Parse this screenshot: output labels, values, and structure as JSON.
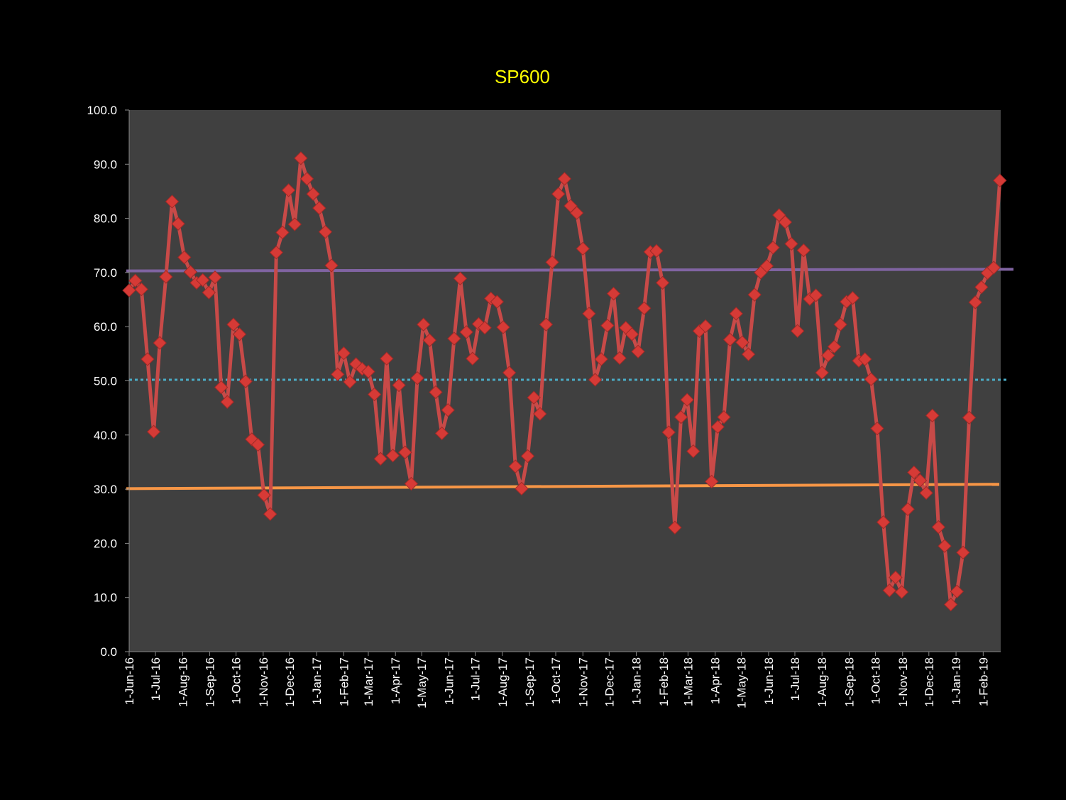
{
  "chart_data": {
    "type": "line",
    "title": "SP600",
    "xlabel": "",
    "ylabel": "",
    "ylim": [
      0,
      100
    ],
    "y_ticks": [
      "0.0",
      "10.0",
      "20.0",
      "30.0",
      "40.0",
      "50.0",
      "60.0",
      "70.0",
      "80.0",
      "90.0",
      "100.0"
    ],
    "x_tick_labels": [
      "1-Jun-16",
      "1-Jul-16",
      "1-Aug-16",
      "1-Sep-16",
      "1-Oct-16",
      "1-Nov-16",
      "1-Dec-16",
      "1-Jan-17",
      "1-Feb-17",
      "1-Mar-17",
      "1-Apr-17",
      "1-May-17",
      "1-Jun-17",
      "1-Jul-17",
      "1-Aug-17",
      "1-Sep-17",
      "1-Oct-17",
      "1-Nov-17",
      "1-Dec-17",
      "1-Jan-18",
      "1-Feb-18",
      "1-Mar-18",
      "1-Apr-18",
      "1-May-18",
      "1-Jun-18",
      "1-Jul-18",
      "1-Aug-18",
      "1-Sep-18",
      "1-Oct-18",
      "1-Nov-18",
      "1-Dec-18",
      "1-Jan-19",
      "1-Feb-19"
    ],
    "x_tick_dates": [
      "2016-06-01",
      "2016-07-01",
      "2016-08-01",
      "2016-09-01",
      "2016-10-01",
      "2016-11-01",
      "2016-12-01",
      "2017-01-01",
      "2017-02-01",
      "2017-03-01",
      "2017-04-01",
      "2017-05-01",
      "2017-06-01",
      "2017-07-01",
      "2017-08-01",
      "2017-09-01",
      "2017-10-01",
      "2017-11-01",
      "2017-12-01",
      "2018-01-01",
      "2018-02-01",
      "2018-03-01",
      "2018-04-01",
      "2018-05-01",
      "2018-06-01",
      "2018-07-01",
      "2018-08-01",
      "2018-09-01",
      "2018-10-01",
      "2018-11-01",
      "2018-12-01",
      "2019-01-01",
      "2019-02-01"
    ],
    "xlim": [
      "2016-06-01",
      "2019-02-21"
    ],
    "grid": false,
    "legend": "none",
    "colors": {
      "background": "#000000",
      "plot_area": "#404040",
      "series": "#c84a48",
      "title": "#ffff00",
      "upper_line": "#8064a2",
      "mid_line": "#4bacc6",
      "lower_line": "#f79646"
    },
    "series": [
      {
        "x": [
          "2016-06-01",
          "2016-06-08",
          "2016-06-15",
          "2016-06-22",
          "2016-06-29",
          "2016-07-06",
          "2016-07-13",
          "2016-07-20",
          "2016-07-27",
          "2016-08-03",
          "2016-08-10",
          "2016-08-17",
          "2016-08-24",
          "2016-08-31",
          "2016-09-07",
          "2016-09-14",
          "2016-09-21",
          "2016-09-28",
          "2016-10-05",
          "2016-10-12",
          "2016-10-19",
          "2016-10-26",
          "2016-11-02",
          "2016-11-09",
          "2016-11-16",
          "2016-11-23",
          "2016-11-30",
          "2016-12-07",
          "2016-12-14",
          "2016-12-21",
          "2016-12-28",
          "2017-01-04",
          "2017-01-11",
          "2017-01-18",
          "2017-01-25",
          "2017-02-01",
          "2017-02-08",
          "2017-02-15",
          "2017-02-22",
          "2017-03-01",
          "2017-03-08",
          "2017-03-15",
          "2017-03-22",
          "2017-03-29",
          "2017-04-05",
          "2017-04-12",
          "2017-04-19",
          "2017-04-26",
          "2017-05-03",
          "2017-05-10",
          "2017-05-17",
          "2017-05-24",
          "2017-05-31",
          "2017-06-07",
          "2017-06-14",
          "2017-06-21",
          "2017-06-28",
          "2017-07-05",
          "2017-07-12",
          "2017-07-19",
          "2017-07-26",
          "2017-08-02",
          "2017-08-09",
          "2017-08-16",
          "2017-08-23",
          "2017-08-30",
          "2017-09-06",
          "2017-09-13",
          "2017-09-20",
          "2017-09-27",
          "2017-10-04",
          "2017-10-11",
          "2017-10-18",
          "2017-10-25",
          "2017-11-01",
          "2017-11-08",
          "2017-11-15",
          "2017-11-22",
          "2017-11-29",
          "2017-12-06",
          "2017-12-13",
          "2017-12-20",
          "2017-12-27",
          "2018-01-03",
          "2018-01-10",
          "2018-01-17",
          "2018-01-24",
          "2018-01-31",
          "2018-02-07",
          "2018-02-14",
          "2018-02-21",
          "2018-02-28",
          "2018-03-07",
          "2018-03-14",
          "2018-03-21",
          "2018-03-28",
          "2018-04-04",
          "2018-04-11",
          "2018-04-18",
          "2018-04-25",
          "2018-05-02",
          "2018-05-09",
          "2018-05-16",
          "2018-05-23",
          "2018-05-30",
          "2018-06-06",
          "2018-06-13",
          "2018-06-20",
          "2018-06-27",
          "2018-07-04",
          "2018-07-11",
          "2018-07-18",
          "2018-07-25",
          "2018-08-01",
          "2018-08-08",
          "2018-08-15",
          "2018-08-22",
          "2018-08-29",
          "2018-09-05",
          "2018-09-12",
          "2018-09-19",
          "2018-09-26",
          "2018-10-03",
          "2018-10-10",
          "2018-10-17",
          "2018-10-24",
          "2018-10-31",
          "2018-11-07",
          "2018-11-14",
          "2018-11-21",
          "2018-11-28",
          "2018-12-05",
          "2018-12-12",
          "2018-12-19",
          "2018-12-26",
          "2019-01-02",
          "2019-01-09",
          "2019-01-16",
          "2019-01-23",
          "2019-01-30",
          "2019-02-06",
          "2019-02-13",
          "2019-02-20"
        ],
        "values": [
          66.7,
          68.5,
          66.9,
          54.0,
          40.6,
          57.0,
          69.2,
          83.1,
          79.0,
          72.8,
          70.1,
          68.1,
          68.6,
          66.3,
          69.1,
          48.8,
          46.1,
          60.4,
          58.6,
          49.9,
          39.2,
          38.2,
          28.9,
          25.4,
          73.7,
          77.4,
          85.2,
          78.9,
          91.1,
          87.3,
          84.5,
          81.9,
          77.5,
          71.3,
          51.2,
          55.1,
          49.8,
          53.1,
          52.2,
          51.7,
          47.5,
          35.6,
          54.1,
          36.2,
          49.2,
          36.8,
          31.0,
          50.5,
          60.4,
          57.5,
          47.9,
          40.3,
          44.6,
          57.8,
          68.9,
          59.0,
          54.1,
          60.5,
          59.8,
          65.2,
          64.6,
          59.9,
          51.5,
          34.2,
          30.1,
          36.1,
          46.9,
          43.9,
          60.4,
          71.9,
          84.5,
          87.3,
          82.3,
          81.0,
          74.4,
          62.4,
          50.2,
          54.0,
          60.2,
          66.1,
          54.2,
          59.8,
          58.6,
          55.4,
          63.4,
          73.8,
          74.0,
          68.1,
          40.5,
          22.9,
          43.3,
          46.5,
          37.0,
          59.2,
          60.1,
          31.4,
          41.5,
          43.3,
          57.6,
          62.4,
          57.1,
          54.9,
          65.9,
          70.0,
          71.2,
          74.6,
          80.6,
          79.3,
          75.3,
          59.2,
          74.1,
          65.1,
          65.8,
          51.5,
          54.7,
          56.3,
          60.4,
          64.6,
          65.3,
          53.7,
          54.0,
          50.3,
          41.2,
          23.9,
          11.3,
          13.7,
          11.0,
          26.3,
          33.1,
          31.6,
          29.3,
          43.6,
          23.0,
          19.5,
          8.7,
          11.1,
          18.3,
          43.2,
          64.5,
          67.3,
          69.9,
          70.9,
          87.0
        ]
      }
    ],
    "reference_lines": [
      {
        "style": "solid",
        "color": "#8064a2",
        "values": [
          70.3,
          70.6
        ]
      },
      {
        "style": "dotted",
        "color": "#4bacc6",
        "values": [
          50.2,
          50.2
        ]
      },
      {
        "style": "solid",
        "color": "#f79646",
        "values": [
          30.1,
          30.9
        ]
      }
    ]
  }
}
